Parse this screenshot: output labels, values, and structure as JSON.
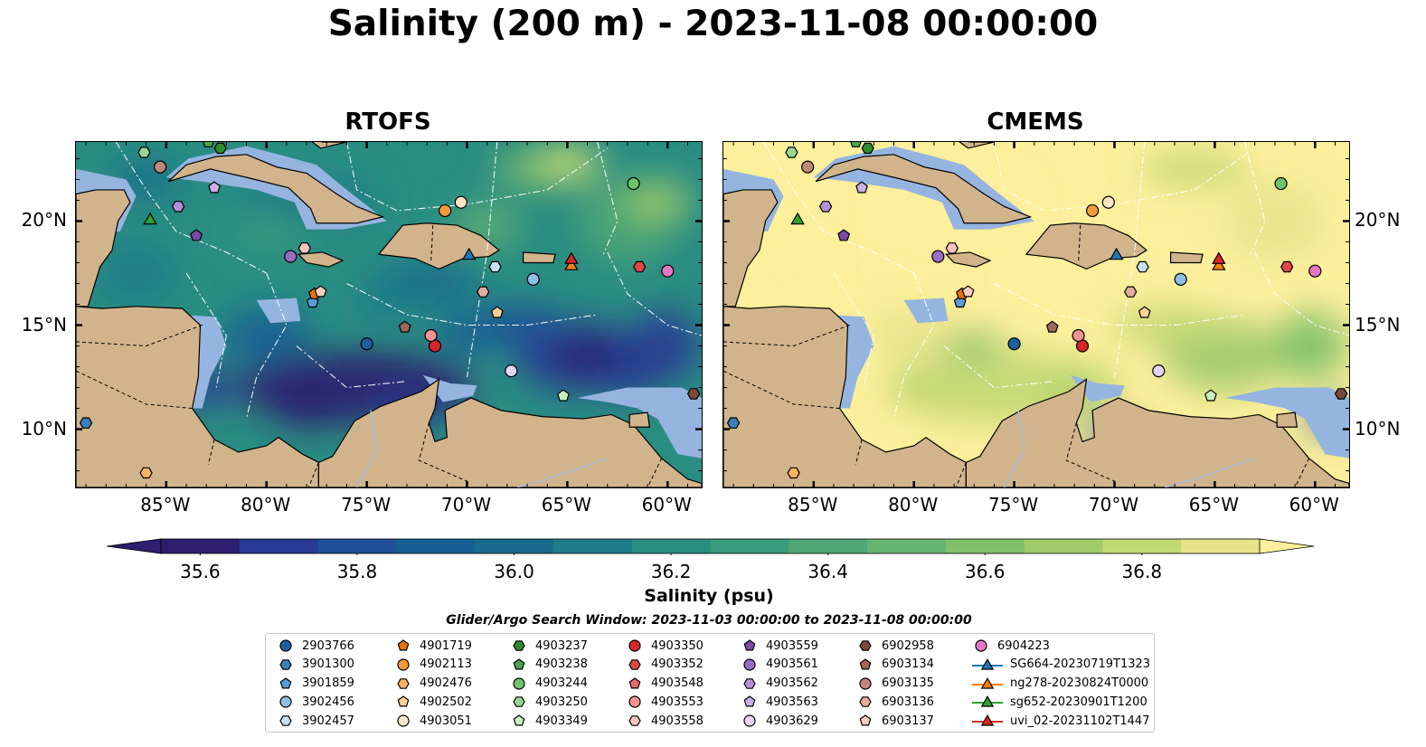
{
  "title": "Salinity (200 m) - 2023-11-08 00:00:00",
  "panels": [
    {
      "title": "RTOFS",
      "key": "rtofs"
    },
    {
      "title": "CMEMS",
      "key": "cmems"
    }
  ],
  "lon_ticks": [
    "85°W",
    "80°W",
    "75°W",
    "70°W",
    "65°W",
    "60°W"
  ],
  "lat_ticks": [
    "20°N",
    "15°N",
    "10°N"
  ],
  "lon_values": [
    -85,
    -80,
    -75,
    -70,
    -65,
    -60
  ],
  "lat_values": [
    20,
    15,
    10
  ],
  "extent": {
    "lon_min": -89.5,
    "lon_max": -58.3,
    "lat_min": 7.2,
    "lat_max": 23.8
  },
  "colorbar": {
    "label": "Salinity (psu)",
    "tick_labels": [
      "35.6",
      "35.8",
      "36.0",
      "36.2",
      "36.4",
      "36.6",
      "36.8"
    ],
    "tick_values": [
      35.6,
      35.8,
      36.0,
      36.2,
      36.4,
      36.6,
      36.8
    ],
    "range": [
      35.55,
      36.95
    ],
    "colors": [
      "#2d1e6f",
      "#283a93",
      "#1f4f98",
      "#175e94",
      "#186b8c",
      "#1f7c88",
      "#2a8d82",
      "#3a9b7c",
      "#4ea775",
      "#66b470",
      "#80c06a",
      "#9fcb68",
      "#c2d873",
      "#e7e48c"
    ],
    "extend_low": "#2d1e6f",
    "extend_high": "#fdef9b"
  },
  "search_window": "Glider/Argo Search Window: 2023-11-03 00:00:00 to 2023-11-08 00:00:00",
  "land_color": "#d2b48c",
  "shelf_color": "#95b4e0",
  "legend": [
    {
      "label": "2903766",
      "marker": "circle",
      "color": "#1f5f9e"
    },
    {
      "label": "3901300",
      "marker": "hexagon",
      "color": "#3d7fb8"
    },
    {
      "label": "3901859",
      "marker": "pentagon",
      "color": "#5a9bd5"
    },
    {
      "label": "3902456",
      "marker": "circle",
      "color": "#8dbfe6"
    },
    {
      "label": "3902457",
      "marker": "hexagon",
      "color": "#c8e0f4"
    },
    {
      "label": "4901719",
      "marker": "pentagon",
      "color": "#e8720c"
    },
    {
      "label": "4902113",
      "marker": "circle",
      "color": "#f59a3c"
    },
    {
      "label": "4902476",
      "marker": "hexagon",
      "color": "#fbb462"
    },
    {
      "label": "4902502",
      "marker": "pentagon",
      "color": "#fdd09a"
    },
    {
      "label": "4903051",
      "marker": "circle",
      "color": "#fee5c6"
    },
    {
      "label": "4903237",
      "marker": "hexagon",
      "color": "#2e8b2e"
    },
    {
      "label": "4903238",
      "marker": "pentagon",
      "color": "#4aa84a"
    },
    {
      "label": "4903244",
      "marker": "circle",
      "color": "#6cc46c"
    },
    {
      "label": "4903250",
      "marker": "hexagon",
      "color": "#96d896"
    },
    {
      "label": "4903349",
      "marker": "pentagon",
      "color": "#c8efc0"
    },
    {
      "label": "4903350",
      "marker": "circle",
      "color": "#d62728"
    },
    {
      "label": "4903352",
      "marker": "hexagon",
      "color": "#e0474a"
    },
    {
      "label": "4903548",
      "marker": "pentagon",
      "color": "#e8696b"
    },
    {
      "label": "4903553",
      "marker": "circle",
      "color": "#f29292"
    },
    {
      "label": "4903558",
      "marker": "hexagon",
      "color": "#f8c4c2"
    },
    {
      "label": "4903559",
      "marker": "pentagon",
      "color": "#7a4ca8"
    },
    {
      "label": "4903561",
      "marker": "circle",
      "color": "#9a6cc4"
    },
    {
      "label": "4903562",
      "marker": "hexagon",
      "color": "#b58fd8"
    },
    {
      "label": "4903563",
      "marker": "pentagon",
      "color": "#cdb0e8"
    },
    {
      "label": "4903629",
      "marker": "circle",
      "color": "#e6d4f6"
    },
    {
      "label": "6902958",
      "marker": "hexagon",
      "color": "#7b4a3c"
    },
    {
      "label": "6903134",
      "marker": "pentagon",
      "color": "#9c6a5a"
    },
    {
      "label": "6903135",
      "marker": "circle",
      "color": "#c08878"
    },
    {
      "label": "6903136",
      "marker": "hexagon",
      "color": "#e3ac9c"
    },
    {
      "label": "6903137",
      "marker": "pentagon",
      "color": "#f7d0c4"
    },
    {
      "label": "6904223",
      "marker": "circle",
      "color": "#e377c2"
    },
    {
      "label": "SG664-20230719T1323",
      "marker": "triangle",
      "color": "#1f77b4"
    },
    {
      "label": "ng278-20230824T0000",
      "marker": "triangle",
      "color": "#ff7f0e"
    },
    {
      "label": "sg652-20230901T1200",
      "marker": "triangle",
      "color": "#2ca02c"
    },
    {
      "label": "uvi_02-20231102T1447",
      "marker": "triangle",
      "color": "#d62728"
    }
  ],
  "observations": [
    {
      "id": "2903766",
      "lon": -75.0,
      "lat": 14.1
    },
    {
      "id": "3901300",
      "lon": -89.0,
      "lat": 10.3
    },
    {
      "id": "3901859",
      "lon": -77.7,
      "lat": 16.1
    },
    {
      "id": "3902456",
      "lon": -66.7,
      "lat": 17.2
    },
    {
      "id": "3902457",
      "lon": -68.6,
      "lat": 17.8
    },
    {
      "id": "4901719",
      "lon": -77.6,
      "lat": 16.5
    },
    {
      "id": "4902113",
      "lon": -71.1,
      "lat": 20.5
    },
    {
      "id": "4902476",
      "lon": -86.0,
      "lat": 7.9
    },
    {
      "id": "4902502",
      "lon": -68.5,
      "lat": 15.6
    },
    {
      "id": "4903051",
      "lon": -70.3,
      "lat": 20.9
    },
    {
      "id": "4903237",
      "lon": -82.3,
      "lat": 23.5
    },
    {
      "id": "4903238",
      "lon": -82.9,
      "lat": 23.8
    },
    {
      "id": "4903244",
      "lon": -61.7,
      "lat": 21.8
    },
    {
      "id": "4903250",
      "lon": -86.1,
      "lat": 23.3
    },
    {
      "id": "4903349",
      "lon": -65.2,
      "lat": 11.6
    },
    {
      "id": "4903350",
      "lon": -71.6,
      "lat": 14.0
    },
    {
      "id": "4903352",
      "lon": -61.4,
      "lat": 17.8
    },
    {
      "id": "4903553",
      "lon": -71.8,
      "lat": 14.5
    },
    {
      "id": "4903558",
      "lon": -78.1,
      "lat": 18.7
    },
    {
      "id": "4903559",
      "lon": -83.5,
      "lat": 19.3
    },
    {
      "id": "4903561",
      "lon": -78.8,
      "lat": 18.3
    },
    {
      "id": "4903562",
      "lon": -84.4,
      "lat": 20.7
    },
    {
      "id": "4903563",
      "lon": -82.6,
      "lat": 21.6
    },
    {
      "id": "4903629",
      "lon": -67.8,
      "lat": 12.8
    },
    {
      "id": "6902958",
      "lon": -58.7,
      "lat": 11.7
    },
    {
      "id": "6903134",
      "lon": -73.1,
      "lat": 14.9
    },
    {
      "id": "6903136",
      "lon": -69.2,
      "lat": 16.6
    },
    {
      "id": "6903137",
      "lon": -77.3,
      "lat": 16.6
    },
    {
      "id": "6904223",
      "lon": -60.0,
      "lat": 17.6
    },
    {
      "id": "6903135",
      "lon": -85.3,
      "lat": 22.6
    },
    {
      "id": "SG664-20230719T1323",
      "lon": -69.9,
      "lat": 18.4
    },
    {
      "id": "ng278-20230824T0000",
      "lon": -64.8,
      "lat": 17.9
    },
    {
      "id": "sg652-20230901T1200",
      "lon": -85.8,
      "lat": 20.1
    },
    {
      "id": "uvi_02-20231102T1447",
      "lon": -64.8,
      "lat": 18.2
    }
  ]
}
